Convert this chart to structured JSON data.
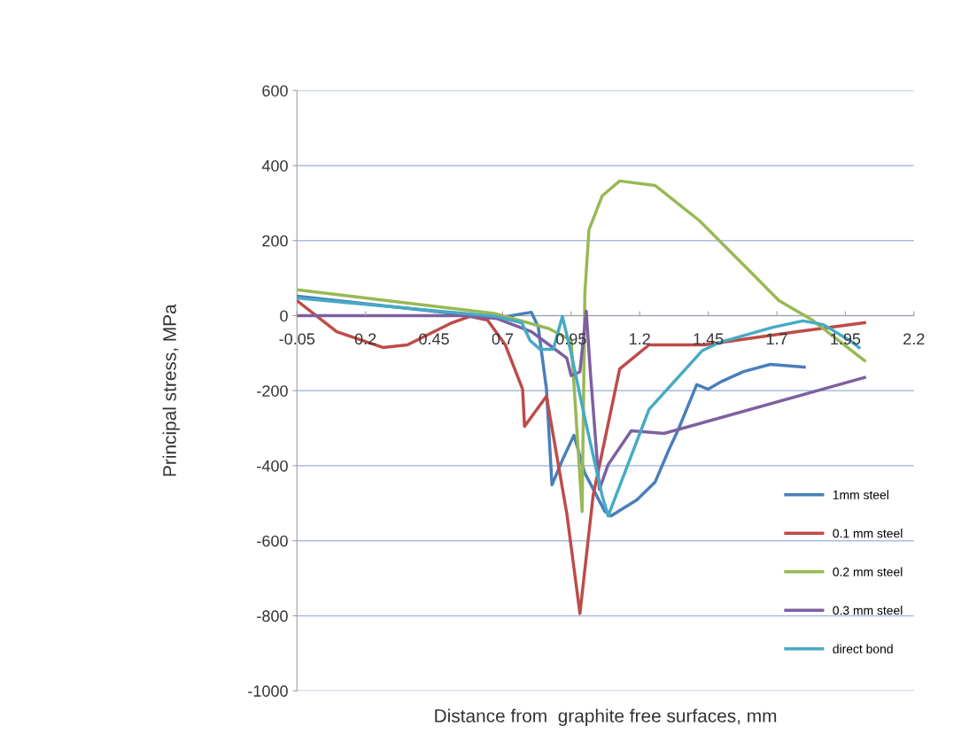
{
  "chart_data": {
    "type": "line",
    "xlabel": "Distance from  graphite free surfaces, mm",
    "ylabel": "Principal stress, MPa",
    "xlim": [
      -0.05,
      2.2
    ],
    "xticks": [
      -0.05,
      0.2,
      0.45,
      0.7,
      0.95,
      1.2,
      1.45,
      1.7,
      1.95,
      2.2
    ],
    "ylim": [
      -1000,
      600
    ],
    "yticks": [
      -1000,
      -800,
      -600,
      -400,
      -200,
      0,
      200,
      400,
      600
    ],
    "grid": "y",
    "legend": "bottom right",
    "marker": "none",
    "line_style": "solid",
    "series": [
      {
        "name": "1mm steel",
        "color": "#4a7ebb",
        "x": [
          -0.05,
          0.68,
          0.77,
          0.805,
          0.83,
          0.86,
          0.88,
          0.918,
          0.96,
          1.0,
          1.073,
          1.095,
          1.19,
          1.256,
          1.305,
          1.344,
          1.408,
          1.45,
          1.5,
          1.579,
          1.676,
          1.8
        ],
        "values": [
          52,
          -7,
          5,
          9,
          -30,
          -196,
          -451,
          -385,
          -319,
          -420,
          -522,
          -534,
          -491,
          -444,
          -360,
          -298,
          -184,
          -196,
          -175,
          -149,
          -130,
          -137
        ]
      },
      {
        "name": "0.1 mm steel",
        "color": "#be4b48",
        "x": [
          -0.05,
          0.095,
          0.263,
          0.353,
          0.515,
          0.58,
          0.645,
          0.71,
          0.773,
          0.78,
          0.86,
          0.934,
          0.982,
          1.03,
          1.127,
          1.234,
          1.434,
          1.77,
          2.02
        ],
        "values": [
          40,
          -43,
          -85,
          -78,
          -19,
          -2,
          -12,
          -78,
          -196,
          -295,
          -215,
          -527,
          -794,
          -480,
          -142,
          -78,
          -78,
          -43,
          -19
        ]
      },
      {
        "name": "0.2 mm steel",
        "color": "#98b954",
        "x": [
          -0.05,
          0.676,
          0.87,
          0.95,
          0.99,
          1.0,
          1.015,
          1.063,
          1.127,
          1.256,
          1.418,
          1.579,
          1.708,
          1.83,
          2.02
        ],
        "values": [
          69,
          5,
          -35,
          -66,
          -522,
          60,
          229,
          319,
          359,
          347,
          253,
          135,
          40,
          -12,
          -120
        ]
      },
      {
        "name": "0.3 mm steel",
        "color": "#7d60a0",
        "x": [
          -0.05,
          0.55,
          0.676,
          0.805,
          0.87,
          0.934,
          0.95,
          0.982,
          1.005,
          1.02,
          1.053,
          1.085,
          1.169,
          1.289,
          2.02
        ],
        "values": [
          0,
          0,
          -7,
          -43,
          -78,
          -113,
          -160,
          -150,
          12,
          -150,
          -463,
          -397,
          -307,
          -314,
          -165
        ]
      },
      {
        "name": "direct bond",
        "color": "#46aac5",
        "x": [
          -0.05,
          0.676,
          0.77,
          0.8,
          0.837,
          0.885,
          0.918,
          0.95,
          0.998,
          1.063,
          1.085,
          1.234,
          1.427,
          1.492,
          1.686,
          1.795,
          1.87,
          1.976,
          2.0
        ],
        "values": [
          47,
          -2,
          -19,
          -66,
          -90,
          -90,
          -2,
          -100,
          -267,
          -480,
          -534,
          -250,
          -94,
          -71,
          -31,
          -14,
          -24,
          -71,
          -85
        ]
      }
    ]
  }
}
